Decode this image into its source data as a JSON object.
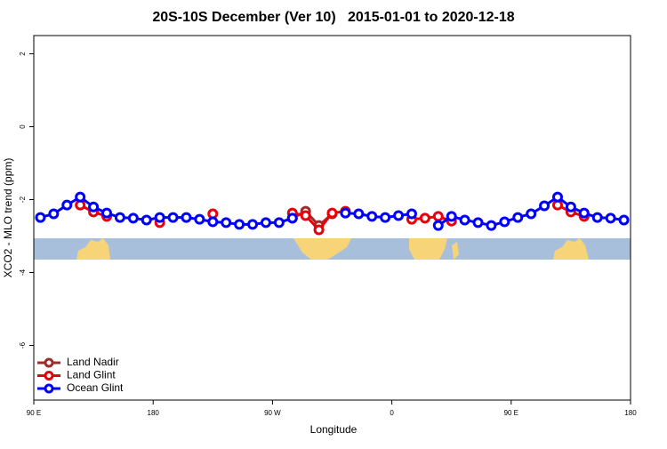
{
  "chart_data": {
    "type": "line",
    "title": "20S-10S December (Ver 10)   2015-01-01 to 2020-12-18",
    "x_label": "Longitude",
    "y_label": "XCO2 - MLO trend (ppm)",
    "x": [
      95,
      105,
      115,
      125,
      135,
      145,
      155,
      165,
      175,
      185,
      195,
      205,
      215,
      225,
      235,
      245,
      255,
      265,
      275,
      285,
      295,
      305,
      315,
      325,
      335,
      345,
      355,
      365,
      375,
      385,
      395,
      405,
      415,
      425,
      435,
      445,
      455,
      465,
      475,
      485,
      495,
      505,
      515,
      525,
      535
    ],
    "series": [
      {
        "name": "Land Nadir",
        "color": "#9b2d2d",
        "values": [
          null,
          null,
          null,
          null,
          null,
          null,
          null,
          null,
          null,
          null,
          null,
          null,
          null,
          null,
          null,
          null,
          null,
          null,
          null,
          -2.51,
          -2.32,
          -2.71,
          -2.39,
          null,
          null,
          null,
          null,
          null,
          null,
          null,
          null,
          null,
          null,
          null,
          null,
          null,
          null,
          null,
          null,
          null,
          null,
          null,
          null,
          null,
          null
        ]
      },
      {
        "name": "Land Glint",
        "color": "#e8000b",
        "values": [
          null,
          null,
          null,
          -2.15,
          -2.34,
          -2.46,
          null,
          null,
          null,
          -2.63,
          null,
          null,
          null,
          -2.39,
          null,
          null,
          null,
          null,
          null,
          -2.37,
          -2.44,
          -2.83,
          -2.37,
          -2.32,
          null,
          null,
          null,
          null,
          -2.54,
          -2.51,
          -2.46,
          -2.59,
          null,
          null,
          null,
          null,
          null,
          null,
          null,
          -2.15,
          -2.34,
          -2.46,
          null,
          null,
          null
        ]
      },
      {
        "name": "Ocean Glint",
        "color": "#0000ff",
        "values": [
          -2.49,
          -2.39,
          -2.15,
          -1.93,
          -2.2,
          -2.37,
          -2.49,
          -2.51,
          -2.56,
          -2.49,
          -2.49,
          -2.49,
          -2.54,
          -2.61,
          -2.63,
          -2.68,
          -2.68,
          -2.63,
          -2.63,
          -2.51,
          null,
          null,
          null,
          -2.37,
          -2.39,
          -2.46,
          -2.49,
          -2.44,
          -2.39,
          null,
          -2.71,
          -2.46,
          -2.56,
          -2.63,
          -2.71,
          -2.61,
          -2.49,
          -2.39,
          -2.17,
          -1.93,
          -2.2,
          -2.37,
          -2.49,
          -2.51,
          -2.56
        ]
      }
    ],
    "xlim": [
      90,
      540
    ],
    "xticks": [
      {
        "value": 90,
        "label": "90 E"
      },
      180,
      {
        "value": 270,
        "label": "90 W"
      },
      {
        "value": 360,
        "label": "0"
      },
      {
        "value": 450,
        "label": "90 E"
      },
      {
        "value": 540,
        "label": "180"
      }
    ],
    "ylim": [
      -7.5,
      2.5
    ],
    "yticks": [
      2,
      0,
      -2,
      -4,
      -6
    ],
    "legend": "bottom-left"
  }
}
